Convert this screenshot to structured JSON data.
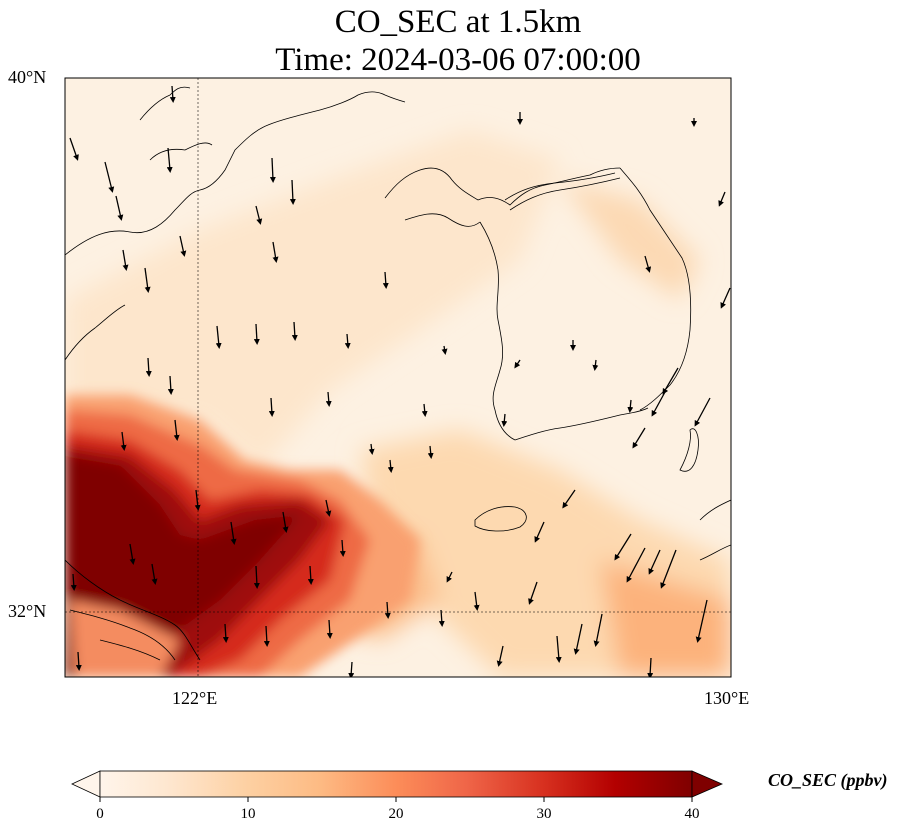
{
  "title": {
    "line1": "CO_SEC at 1.5km",
    "line2": "Time: 2024-03-06 07:00:00"
  },
  "map": {
    "lat_range": [
      31.0,
      40.0
    ],
    "lon_range": [
      120.0,
      130.0
    ],
    "gridlines": {
      "lat": 32,
      "lon": 122
    },
    "lat_ticks": [
      {
        "value": 40,
        "label": "40°N"
      },
      {
        "value": 32,
        "label": "32°N"
      }
    ],
    "lon_ticks": [
      {
        "value": 122,
        "label": "122°E"
      },
      {
        "value": 130,
        "label": "130°E"
      }
    ],
    "coastline_color": "#000000",
    "wind_arrow_color": "#000000"
  },
  "colorbar": {
    "label": "CO_SEC (ppbv)",
    "min": 0,
    "max": 40,
    "ticks": [
      "0",
      "10",
      "20",
      "30",
      "40"
    ],
    "colormap": [
      "#fff5eb",
      "#fee6ce",
      "#fdd0a2",
      "#fdae6b",
      "#fd8d3c",
      "#f16913",
      "#d94801",
      "#a63603",
      "#7f0000"
    ],
    "extend": "both"
  }
}
